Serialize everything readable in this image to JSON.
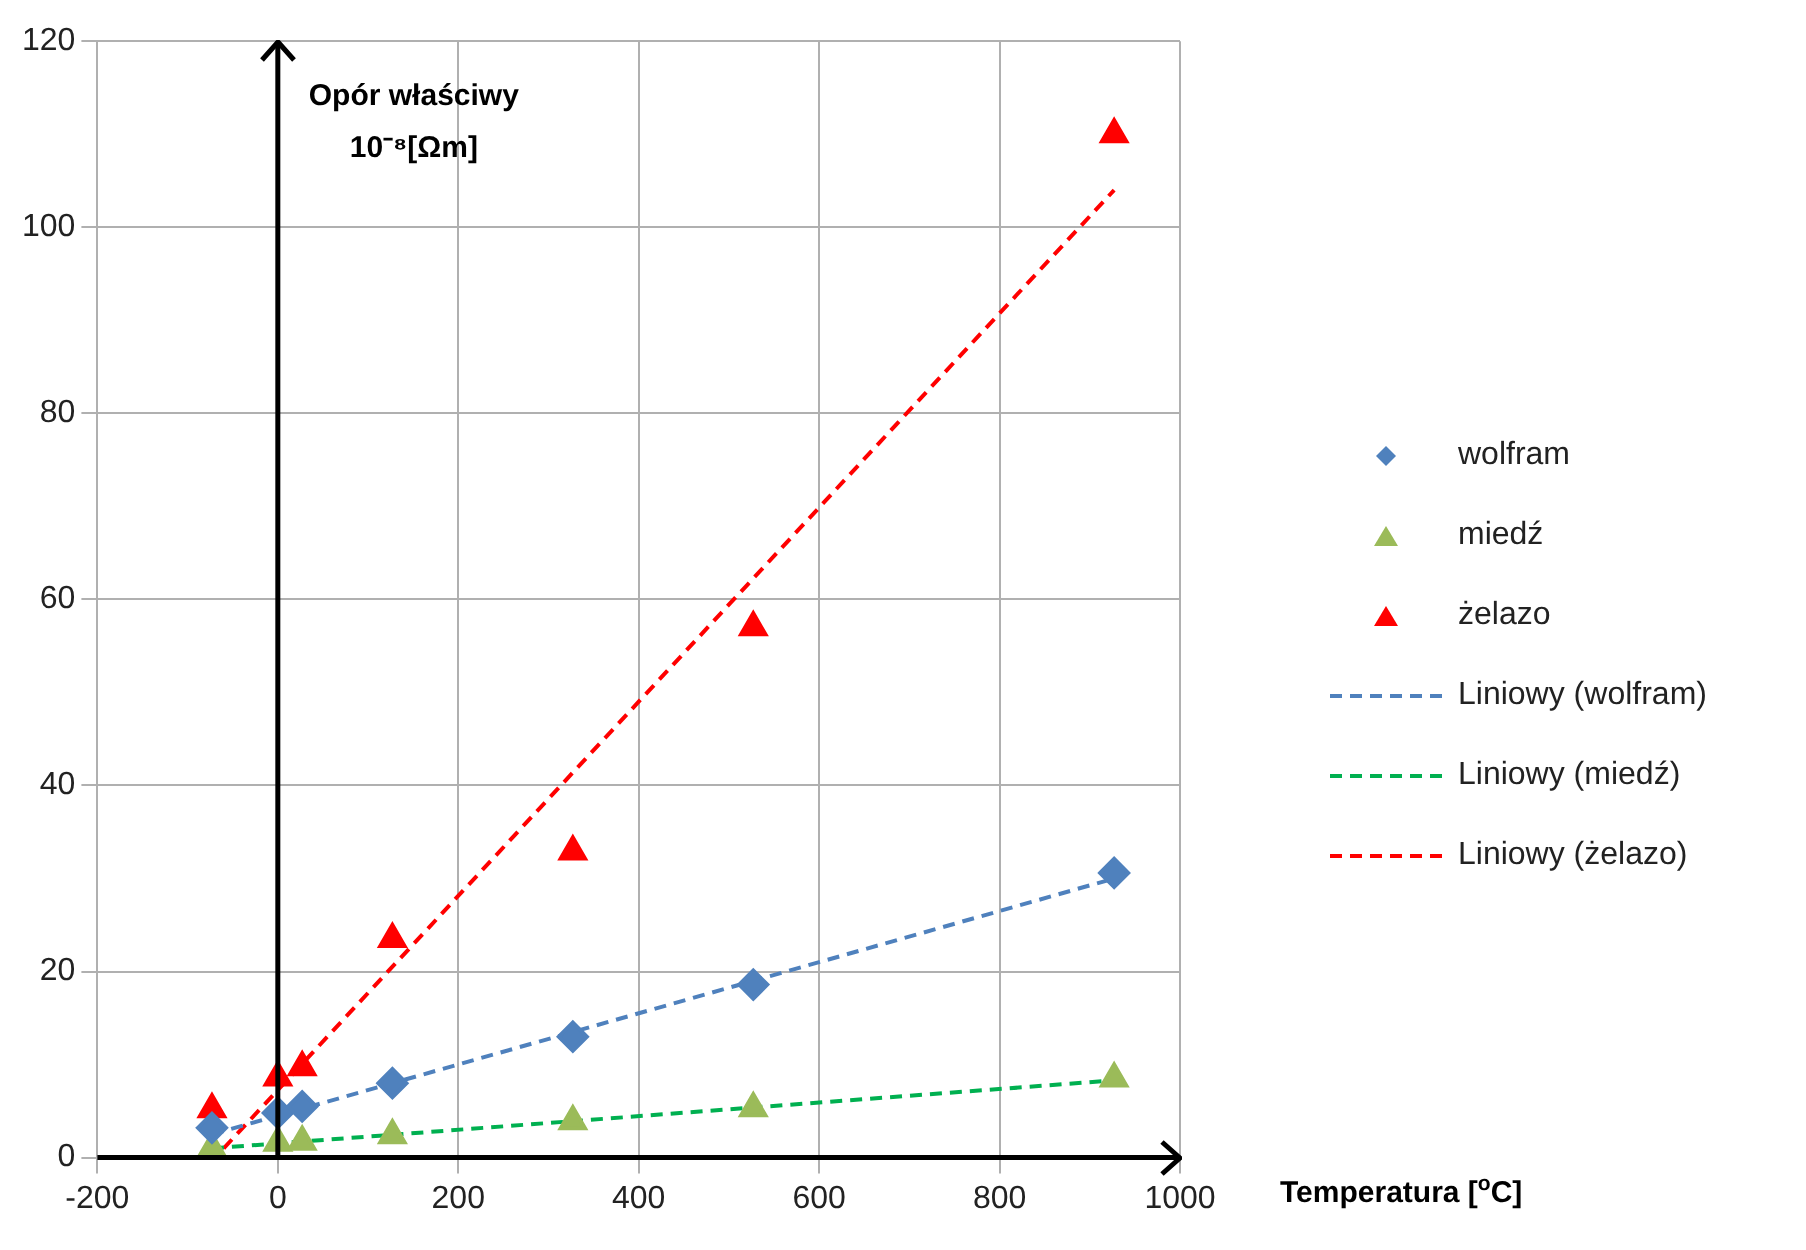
{
  "chart_data": {
    "type": "scatter",
    "xlabel": "Temperatura [$^{o}$C]",
    "ylabel": "Opór właściwy 10⁻⁸[Ωm]",
    "xlim": [
      -200,
      1000
    ],
    "xticks": [
      -200,
      0,
      200,
      400,
      600,
      800,
      1000
    ],
    "ylim": [
      0,
      120
    ],
    "yticks": [
      0,
      20,
      40,
      60,
      80,
      100,
      120
    ],
    "grid": true,
    "legend": "right",
    "series": [
      {
        "name": "wolfram",
        "marker": "diamond",
        "color": "#4f81bd",
        "x": [
          -73,
          0,
          27,
          127,
          327,
          527,
          927
        ],
        "values": [
          3.2,
          4.8,
          5.5,
          8,
          13,
          18.6,
          30.6
        ]
      },
      {
        "name": "miedź",
        "marker": "triangle",
        "color": "#9bbb59",
        "x": [
          -73,
          0,
          27,
          127,
          327,
          527,
          927
        ],
        "values": [
          1,
          1.6,
          1.7,
          2.4,
          3.9,
          5.3,
          8.5
        ]
      },
      {
        "name": "żelazo",
        "marker": "triangle",
        "color": "#ff0000",
        "x": [
          -73,
          0,
          27,
          127,
          327,
          527,
          927
        ],
        "values": [
          5.2,
          8.6,
          9.7,
          23.5,
          32.9,
          57,
          110
        ]
      },
      {
        "name": "Liniowy (wolfram)",
        "type": "line",
        "marker": "none",
        "line_style": "dashed",
        "color": "#4f81bd",
        "x": [
          -73,
          927
        ],
        "values": [
          2.5,
          30
        ]
      },
      {
        "name": "Liniowy (miedź)",
        "type": "line",
        "marker": "none",
        "line_style": "dashed",
        "color": "#00b050",
        "x": [
          -73,
          927
        ],
        "values": [
          1,
          8.3
        ]
      },
      {
        "name": "Liniowy (żelazo)",
        "type": "line",
        "marker": "none",
        "line_style": "dashed",
        "color": "#ff0000",
        "x": [
          -60,
          927
        ],
        "values": [
          1,
          104
        ]
      }
    ]
  }
}
